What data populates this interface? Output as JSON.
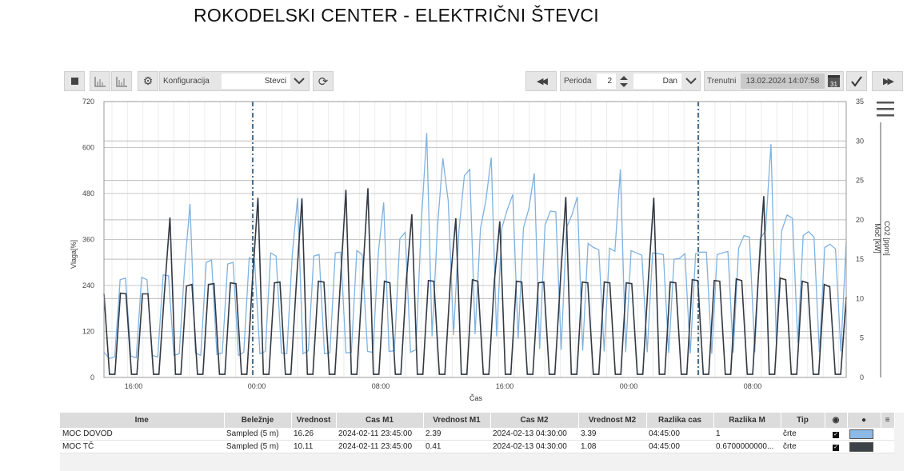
{
  "title": "ROKODELSKI CENTER - ELEKTRIČNI ŠTEVCI",
  "toolbar": {
    "config_label": "Konfiguracija",
    "config_value": "Stevci",
    "period_label": "Perioda",
    "period_value": "2",
    "period_unit": "Dan",
    "current_label": "Trenutni",
    "datetime": "13.02.2024 14:07:58",
    "calendar_day": "31"
  },
  "chart_data": {
    "type": "line",
    "xlabel": "Čas",
    "ylabel_left": "Vlaga[%]",
    "ylabel_right": "CO2 [ppm]",
    "ylabel_right2": "Moč [kW]",
    "x_ticks": [
      "16:00",
      "00:00",
      "08:00",
      "16:00",
      "00:00",
      "08:00"
    ],
    "y_left_ticks": [
      "0",
      "120",
      "240",
      "360",
      "480",
      "600",
      "720"
    ],
    "y_right_ticks": [
      "0",
      "5",
      "10",
      "15",
      "20",
      "25",
      "30",
      "35"
    ],
    "ylim_left": [
      0,
      720
    ],
    "ylim_right": [
      0,
      35
    ],
    "grid": true,
    "markers": [
      "2024-02-11 23:45:00",
      "2024-02-13 04:30:00"
    ],
    "series": [
      {
        "name": "MOC DOVOD",
        "color": "#7fb2e0",
        "values": [
          3.2,
          2.4,
          2.6,
          12.4,
          12.6,
          2.7,
          2.5,
          12.7,
          12.4,
          2.8,
          2.6,
          13.0,
          12.9,
          2.8,
          3.0,
          14.1,
          22.0,
          3.1,
          2.8,
          14.6,
          14.9,
          2.9,
          3.1,
          14.4,
          14.6,
          2.8,
          3.2,
          15.2,
          14.8,
          3.0,
          3.3,
          15.8,
          15.4,
          3.1,
          3.0,
          15.6,
          22.8,
          3.0,
          3.4,
          15.4,
          15.6,
          3.0,
          3.1,
          15.8,
          15.9,
          3.1,
          3.2,
          16.1,
          15.6,
          3.3,
          3.2,
          15.8,
          22.2,
          3.3,
          3.4,
          17.6,
          18.4,
          3.2,
          3.5,
          19.7,
          31.0,
          5.2,
          19.0,
          27.8,
          22.4,
          5.4,
          18.6,
          25.6,
          26.4,
          5.5,
          18.9,
          22.4,
          27.9,
          5.2,
          19.0,
          21.3,
          23.2,
          4.9,
          19.0,
          21.4,
          25.9,
          3.6,
          19.3,
          21.1,
          21.0,
          3.5,
          19.0,
          20.6,
          22.9,
          3.4,
          17.0,
          16.5,
          16.2,
          3.3,
          16.4,
          16.0,
          26.4,
          3.2,
          16.1,
          15.8,
          15.5,
          3.2,
          15.8,
          15.7,
          15.6,
          3.1,
          15.0,
          15.1,
          15.7,
          3.0,
          15.7,
          15.9,
          15.9,
          3.0,
          15.6,
          15.8,
          16.0,
          3.1,
          16.4,
          18.0,
          17.8,
          3.2,
          17.6,
          18.6,
          29.6,
          4.5,
          18.6,
          20.6,
          20.2,
          4.4,
          18.0,
          18.5,
          17.8,
          3.2,
          16.5,
          16.9,
          16.3,
          3.3,
          17.2
        ],
        "m1": "16.26",
        "setting": "Sampled (5 m)"
      },
      {
        "name": "MOC TČ",
        "color": "#333842",
        "values": [
          10.6,
          0.4,
          0.4,
          10.7,
          10.6,
          0.4,
          0.4,
          10.6,
          10.6,
          0.4,
          0.4,
          10.8,
          20.3,
          0.4,
          0.4,
          11.6,
          11.8,
          0.4,
          0.4,
          11.8,
          11.9,
          0.4,
          0.4,
          12.0,
          11.9,
          0.4,
          0.4,
          12.2,
          22.8,
          0.4,
          0.4,
          12.0,
          12.1,
          0.4,
          0.4,
          12.1,
          22.7,
          0.4,
          0.4,
          12.2,
          12.1,
          0.4,
          0.4,
          12.1,
          23.8,
          0.4,
          0.4,
          12.2,
          24.0,
          0.4,
          0.4,
          12.2,
          12.0,
          0.4,
          0.4,
          12.3,
          20.7,
          0.4,
          0.4,
          12.3,
          12.2,
          0.4,
          0.4,
          12.3,
          20.2,
          0.4,
          0.4,
          12.4,
          12.2,
          0.4,
          0.4,
          12.2,
          19.8,
          0.4,
          0.4,
          12.2,
          12.1,
          0.4,
          0.4,
          12.0,
          12.1,
          0.4,
          0.4,
          12.0,
          22.9,
          0.4,
          0.4,
          12.1,
          12.0,
          0.4,
          0.4,
          12.1,
          12.0,
          0.4,
          0.4,
          12.0,
          11.9,
          0.4,
          0.4,
          12.2,
          22.8,
          0.4,
          0.4,
          12.1,
          12.0,
          0.4,
          0.4,
          12.4,
          12.3,
          0.4,
          0.4,
          12.3,
          12.2,
          0.4,
          0.4,
          12.5,
          12.3,
          0.4,
          0.4,
          12.5,
          23.0,
          0.4,
          0.4,
          12.6,
          12.4,
          0.4,
          0.4,
          12.2,
          12.0,
          0.4,
          0.4,
          11.8,
          11.5,
          0.4,
          0.4,
          10.2
        ],
        "m1": "10.11",
        "setting": "Sampled (5 m)"
      }
    ]
  },
  "table": {
    "headers": [
      "Ime",
      "Beležnje",
      "Vrednost",
      "Cas M1",
      "Vrednost M1",
      "Cas M2",
      "Vrednost M2",
      "Razlika cas",
      "Razlika M",
      "Tip"
    ],
    "rows": [
      [
        "MOC DOVOD",
        "Sampled (5 m)",
        "16.26",
        "2024-02-11 23:45:00",
        "2.39",
        "2024-02-13 04:30:00",
        "3.39",
        "04:45:00",
        "1",
        "črte"
      ],
      [
        "MOC TČ",
        "Sampled (5 m)",
        "10.11",
        "2024-02-11 23:45:00",
        "0.41",
        "2024-02-13 04:30:00",
        "1.08",
        "04:45:00",
        "0.6700000000...",
        "črte"
      ]
    ],
    "row_colors": [
      "#8cb9e6",
      "#3d4148"
    ]
  }
}
